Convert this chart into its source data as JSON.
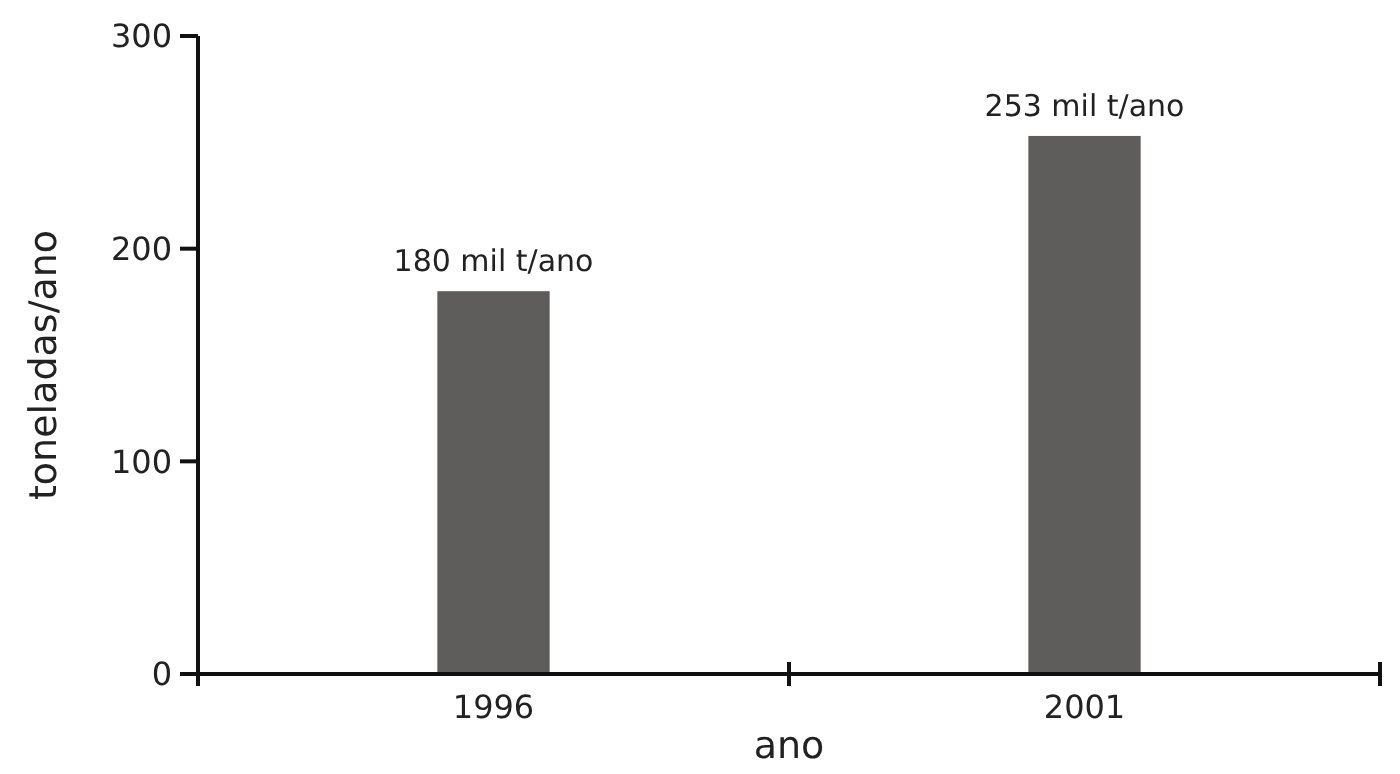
{
  "chart_data": {
    "type": "bar",
    "xlabel": "ano",
    "ylabel": "toneladas/ano",
    "categories": [
      "1996",
      "2001"
    ],
    "values": [
      180,
      253
    ],
    "value_labels": [
      "180 mil t/ano",
      "253 mil t/ano"
    ],
    "color": "#5e5d5c",
    "ylim": [
      0,
      300
    ],
    "yticks": [
      0,
      100,
      200,
      300
    ],
    "grid": false
  }
}
